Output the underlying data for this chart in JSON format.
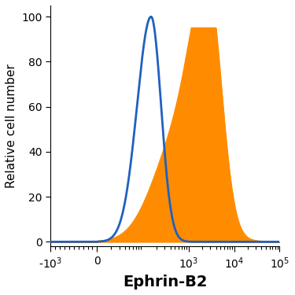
{
  "title": "",
  "xlabel": "Ephrin-B2",
  "ylabel": "Relative cell number",
  "ylim": [
    -2,
    105
  ],
  "yticks": [
    0,
    20,
    40,
    60,
    80,
    100
  ],
  "blue_color": "#2060c0",
  "orange_color": "#FF8C00",
  "orange_fill": "#FF8C00",
  "xlabel_fontsize": 14,
  "ylabel_fontsize": 11,
  "tick_fontsize": 10,
  "xlabel_fontweight": "bold",
  "tick_labels": [
    "-10$^3$",
    "0",
    "10$^3$",
    "10$^4$",
    "10$^5$"
  ],
  "tick_data_vals": [
    -1000,
    0,
    1000,
    10000,
    100000
  ]
}
